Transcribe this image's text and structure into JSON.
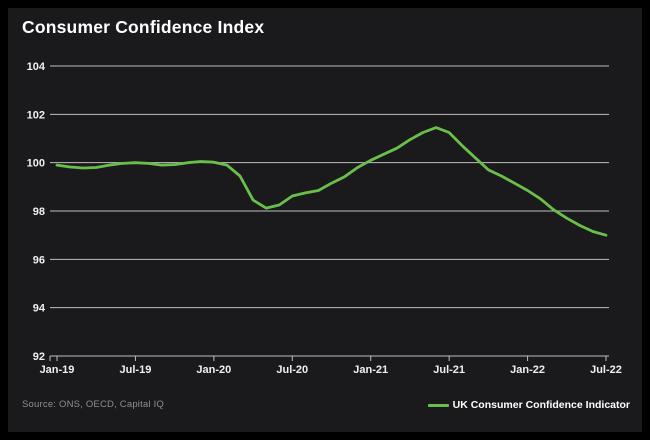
{
  "header": {
    "title": "Consumer Confidence Index"
  },
  "footer": {
    "source": "Source: ONS, OECD, Capital IQ",
    "legend": {
      "label": "UK Consumer Confidence Indicator",
      "swatch_color": "#6abf4a"
    }
  },
  "colors": {
    "background_outer": "#000000",
    "background_panel": "#1a1a1c",
    "gridline": "#bfbfbf",
    "axis_text": "#f0f0f0",
    "line": "#6abf4a",
    "source_text": "#8e8d92"
  },
  "chart_data": {
    "type": "line",
    "title": "Consumer Confidence Index",
    "xlabel": "",
    "ylabel": "",
    "ylim": [
      92,
      104
    ],
    "y_ticks": [
      104,
      102,
      100,
      98,
      96,
      94,
      92
    ],
    "grid": true,
    "legend_position": "bottom-right",
    "x": [
      "Jan-19",
      "Feb-19",
      "Mar-19",
      "Apr-19",
      "May-19",
      "Jun-19",
      "Jul-19",
      "Aug-19",
      "Sep-19",
      "Oct-19",
      "Nov-19",
      "Dec-19",
      "Jan-20",
      "Feb-20",
      "Mar-20",
      "Apr-20",
      "May-20",
      "Jun-20",
      "Jul-20",
      "Aug-20",
      "Sep-20",
      "Oct-20",
      "Nov-20",
      "Dec-20",
      "Jan-21",
      "Feb-21",
      "Mar-21",
      "Apr-21",
      "May-21",
      "Jun-21",
      "Jul-21",
      "Aug-21",
      "Sep-21",
      "Oct-21",
      "Nov-21",
      "Dec-21",
      "Jan-22",
      "Feb-22",
      "Mar-22",
      "Apr-22",
      "May-22",
      "Jun-22",
      "Jul-22"
    ],
    "x_tick_labels": [
      "Jan-19",
      "Jul-19",
      "Jan-20",
      "Jul-20",
      "Jan-21",
      "Jul-21",
      "Jan-22",
      "Jul-22"
    ],
    "series": [
      {
        "name": "UK Consumer Confidence Indicator",
        "color": "#6abf4a",
        "values": [
          99.9,
          99.82,
          99.78,
          99.8,
          99.9,
          99.97,
          100.0,
          99.97,
          99.9,
          99.92,
          100.0,
          100.05,
          100.02,
          99.9,
          99.45,
          98.45,
          98.12,
          98.25,
          98.62,
          98.75,
          98.85,
          99.15,
          99.42,
          99.8,
          100.1,
          100.35,
          100.6,
          100.95,
          101.25,
          101.45,
          101.25,
          100.7,
          100.2,
          99.7,
          99.45,
          99.15,
          98.85,
          98.5,
          98.05,
          97.7,
          97.4,
          97.15,
          97.0
        ]
      }
    ]
  }
}
